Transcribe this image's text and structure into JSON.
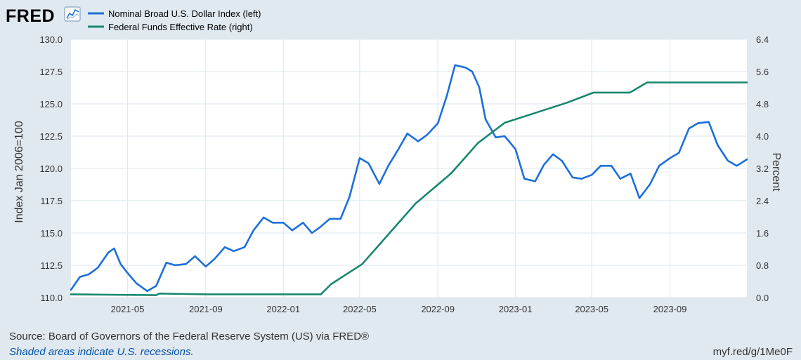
{
  "logo": {
    "text": "FRED"
  },
  "legend": [
    {
      "label": "Nominal Broad U.S. Dollar Index (left)",
      "color": "#1c6fdc"
    },
    {
      "label": "Federal Funds Effective Rate (right)",
      "color": "#198770"
    }
  ],
  "footer": {
    "source": "Source: Board of Governors of the Federal Reserve System (US) via FRED®",
    "recession_note": "Shaded areas indicate U.S. recessions.",
    "short_url": "myf.red/g/1Me0F"
  },
  "chart_data": {
    "type": "line",
    "title": "",
    "grid": true,
    "legend_position": "top-left",
    "x_axis": {
      "type": "date",
      "range": [
        "2021-02-01",
        "2023-12-31"
      ],
      "ticks": [
        "2021-05",
        "2021-09",
        "2022-01",
        "2022-05",
        "2022-09",
        "2023-01",
        "2023-05",
        "2023-09"
      ]
    },
    "y_left": {
      "label": "Index Jan 2006=100",
      "range": [
        110.0,
        130.0
      ],
      "ticks": [
        "110.0",
        "112.5",
        "115.0",
        "117.5",
        "120.0",
        "122.5",
        "125.0",
        "127.5",
        "130.0"
      ]
    },
    "y_right": {
      "label": "Percent",
      "range": [
        0.0,
        6.4
      ],
      "ticks": [
        "0.0",
        "0.8",
        "1.6",
        "2.4",
        "3.2",
        "4.0",
        "4.8",
        "5.6",
        "6.4"
      ]
    },
    "series": [
      {
        "name": "Nominal Broad U.S. Dollar Index (left)",
        "axis": "left",
        "color": "#1c6fdc",
        "points": [
          [
            "2021-02-01",
            110.6
          ],
          [
            "2021-02-15",
            111.6
          ],
          [
            "2021-03-01",
            111.8
          ],
          [
            "2021-03-15",
            112.3
          ],
          [
            "2021-04-01",
            113.5
          ],
          [
            "2021-04-10",
            113.8
          ],
          [
            "2021-04-20",
            112.6
          ],
          [
            "2021-05-01",
            111.9
          ],
          [
            "2021-05-15",
            111.1
          ],
          [
            "2021-06-01",
            110.5
          ],
          [
            "2021-06-15",
            110.9
          ],
          [
            "2021-07-01",
            112.7
          ],
          [
            "2021-07-15",
            112.5
          ],
          [
            "2021-08-01",
            112.6
          ],
          [
            "2021-08-15",
            113.2
          ],
          [
            "2021-09-01",
            112.4
          ],
          [
            "2021-09-15",
            113.0
          ],
          [
            "2021-10-01",
            113.9
          ],
          [
            "2021-10-15",
            113.6
          ],
          [
            "2021-11-01",
            113.9
          ],
          [
            "2021-11-15",
            115.2
          ],
          [
            "2021-12-01",
            116.2
          ],
          [
            "2021-12-15",
            115.8
          ],
          [
            "2022-01-01",
            115.8
          ],
          [
            "2022-01-15",
            115.2
          ],
          [
            "2022-02-01",
            115.8
          ],
          [
            "2022-02-15",
            115.0
          ],
          [
            "2022-03-01",
            115.5
          ],
          [
            "2022-03-15",
            116.1
          ],
          [
            "2022-04-01",
            116.1
          ],
          [
            "2022-04-15",
            117.8
          ],
          [
            "2022-05-01",
            120.8
          ],
          [
            "2022-05-15",
            120.4
          ],
          [
            "2022-06-01",
            118.8
          ],
          [
            "2022-06-15",
            120.2
          ],
          [
            "2022-07-01",
            121.5
          ],
          [
            "2022-07-15",
            122.7
          ],
          [
            "2022-08-01",
            122.1
          ],
          [
            "2022-08-15",
            122.6
          ],
          [
            "2022-09-01",
            123.5
          ],
          [
            "2022-09-15",
            125.6
          ],
          [
            "2022-09-28",
            128.0
          ],
          [
            "2022-10-15",
            127.8
          ],
          [
            "2022-10-25",
            127.5
          ],
          [
            "2022-11-05",
            126.3
          ],
          [
            "2022-11-15",
            123.8
          ],
          [
            "2022-12-01",
            122.4
          ],
          [
            "2022-12-15",
            122.5
          ],
          [
            "2023-01-01",
            121.5
          ],
          [
            "2023-01-15",
            119.2
          ],
          [
            "2023-02-01",
            119.0
          ],
          [
            "2023-02-15",
            120.3
          ],
          [
            "2023-03-01",
            121.1
          ],
          [
            "2023-03-15",
            120.6
          ],
          [
            "2023-04-01",
            119.3
          ],
          [
            "2023-04-15",
            119.2
          ],
          [
            "2023-05-01",
            119.5
          ],
          [
            "2023-05-15",
            120.2
          ],
          [
            "2023-06-01",
            120.2
          ],
          [
            "2023-06-15",
            119.2
          ],
          [
            "2023-07-01",
            119.6
          ],
          [
            "2023-07-15",
            117.7
          ],
          [
            "2023-08-01",
            118.8
          ],
          [
            "2023-08-15",
            120.2
          ],
          [
            "2023-09-01",
            120.8
          ],
          [
            "2023-09-15",
            121.2
          ],
          [
            "2023-10-01",
            123.1
          ],
          [
            "2023-10-15",
            123.5
          ],
          [
            "2023-11-01",
            123.6
          ],
          [
            "2023-11-15",
            121.8
          ],
          [
            "2023-12-01",
            120.6
          ],
          [
            "2023-12-15",
            120.2
          ],
          [
            "2023-12-31",
            120.7
          ]
        ]
      },
      {
        "name": "Federal Funds Effective Rate (right)",
        "axis": "right",
        "color": "#198770",
        "points": [
          [
            "2021-02-01",
            0.08
          ],
          [
            "2021-04-01",
            0.07
          ],
          [
            "2021-06-15",
            0.06
          ],
          [
            "2021-06-20",
            0.1
          ],
          [
            "2021-09-01",
            0.08
          ],
          [
            "2022-03-01",
            0.08
          ],
          [
            "2022-03-17",
            0.33
          ],
          [
            "2022-05-05",
            0.83
          ],
          [
            "2022-06-16",
            1.58
          ],
          [
            "2022-07-28",
            2.33
          ],
          [
            "2022-09-22",
            3.08
          ],
          [
            "2022-11-03",
            3.83
          ],
          [
            "2022-12-15",
            4.33
          ],
          [
            "2023-02-02",
            4.58
          ],
          [
            "2023-03-23",
            4.83
          ],
          [
            "2023-05-04",
            5.08
          ],
          [
            "2023-06-30",
            5.08
          ],
          [
            "2023-07-27",
            5.33
          ],
          [
            "2023-12-31",
            5.33
          ]
        ]
      }
    ]
  }
}
